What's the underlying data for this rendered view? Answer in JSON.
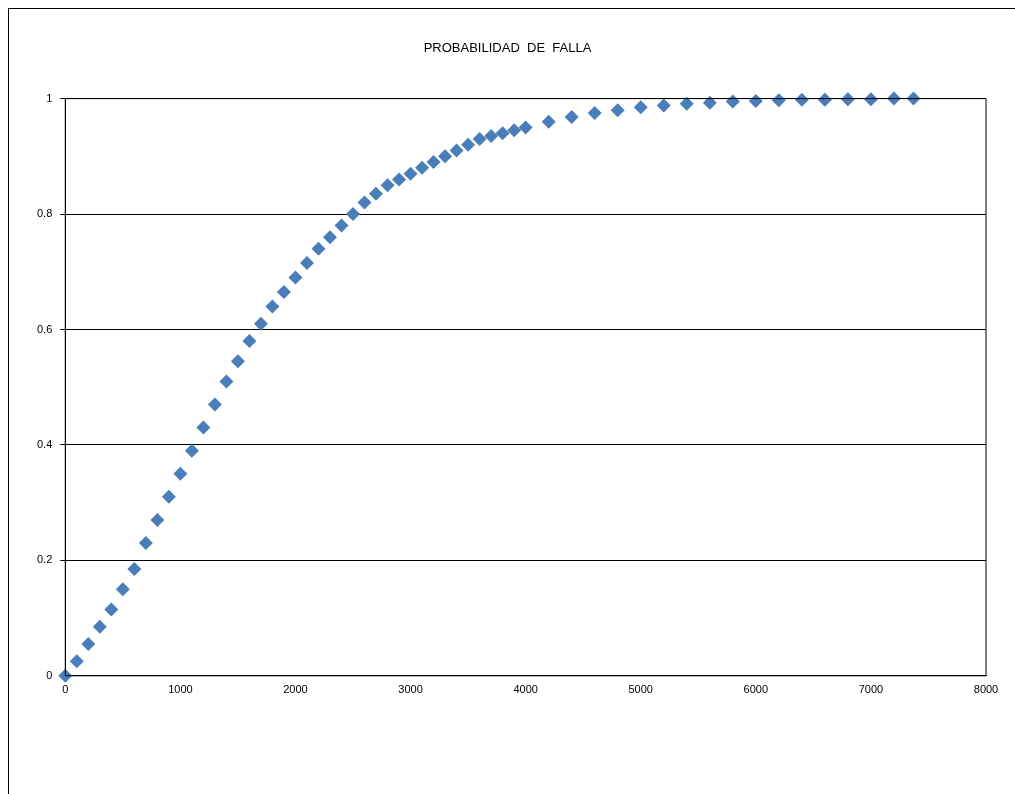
{
  "chart_data": {
    "type": "scatter",
    "title": "PROBABILIDAD  DE  FALLA",
    "x": [
      0,
      100,
      200,
      300,
      400,
      500,
      600,
      700,
      800,
      900,
      1000,
      1100,
      1200,
      1300,
      1400,
      1500,
      1600,
      1700,
      1800,
      1900,
      2000,
      2100,
      2200,
      2300,
      2400,
      2500,
      2600,
      2700,
      2800,
      2900,
      3000,
      3100,
      3200,
      3300,
      3400,
      3500,
      3600,
      3700,
      3800,
      3900,
      4000,
      4200,
      4400,
      4600,
      4800,
      5000,
      5200,
      5400,
      5600,
      5800,
      6000,
      6200,
      6400,
      6600,
      6800,
      7000,
      7200,
      7370
    ],
    "series": [
      {
        "color": "#4a7ebb",
        "values": [
          0,
          0.025,
          0.055,
          0.085,
          0.115,
          0.15,
          0.185,
          0.23,
          0.27,
          0.31,
          0.35,
          0.39,
          0.43,
          0.47,
          0.51,
          0.545,
          0.58,
          0.61,
          0.64,
          0.665,
          0.69,
          0.715,
          0.74,
          0.76,
          0.78,
          0.8,
          0.82,
          0.835,
          0.85,
          0.86,
          0.87,
          0.88,
          0.89,
          0.9,
          0.91,
          0.92,
          0.93,
          0.935,
          0.94,
          0.945,
          0.95,
          0.96,
          0.968,
          0.975,
          0.98,
          0.985,
          0.988,
          0.991,
          0.993,
          0.995,
          0.996,
          0.997,
          0.998,
          0.998,
          0.999,
          0.999,
          1,
          1
        ]
      }
    ],
    "xlim": [
      0,
      8000
    ],
    "xticks": [
      0,
      1000,
      2000,
      3000,
      4000,
      5000,
      6000,
      7000,
      8000
    ],
    "ylim": [
      0,
      1
    ],
    "yticks": [
      0,
      0.2,
      0.4,
      0.6,
      0.8,
      1
    ],
    "grid": "y",
    "legend": false,
    "marker": "diamond"
  }
}
